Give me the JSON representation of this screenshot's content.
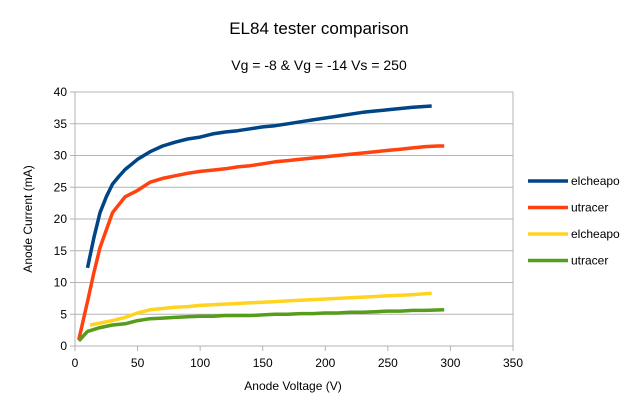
{
  "chart_data": {
    "type": "line",
    "title": "EL84 tester comparison",
    "subtitle": "Vg = -8 & Vg = -14 Vs = 250",
    "xlabel": "Anode Voltage (V)",
    "ylabel": "Anode Current (mA)",
    "xlim": [
      0,
      350
    ],
    "ylim": [
      0,
      40
    ],
    "xticks": [
      0,
      50,
      100,
      150,
      200,
      250,
      300,
      350
    ],
    "yticks": [
      0,
      5,
      10,
      15,
      20,
      25,
      30,
      35,
      40
    ],
    "grid": "horizontal",
    "legend": "right",
    "series": [
      {
        "name": "elcheapo",
        "color": "#004586",
        "points": [
          [
            10,
            12.3
          ],
          [
            15,
            17
          ],
          [
            20,
            21
          ],
          [
            25,
            23.5
          ],
          [
            30,
            25.5
          ],
          [
            35,
            26.7
          ],
          [
            40,
            27.8
          ],
          [
            50,
            29.4
          ],
          [
            60,
            30.6
          ],
          [
            70,
            31.5
          ],
          [
            80,
            32.1
          ],
          [
            90,
            32.6
          ],
          [
            100,
            32.9
          ],
          [
            110,
            33.4
          ],
          [
            120,
            33.7
          ],
          [
            130,
            33.9
          ],
          [
            140,
            34.2
          ],
          [
            150,
            34.5
          ],
          [
            160,
            34.7
          ],
          [
            170,
            35.0
          ],
          [
            180,
            35.3
          ],
          [
            190,
            35.6
          ],
          [
            200,
            35.9
          ],
          [
            210,
            36.2
          ],
          [
            220,
            36.5
          ],
          [
            230,
            36.8
          ],
          [
            240,
            37.0
          ],
          [
            250,
            37.2
          ],
          [
            260,
            37.4
          ],
          [
            270,
            37.6
          ],
          [
            285,
            37.8
          ]
        ]
      },
      {
        "name": "utracer",
        "color": "#ff420e",
        "points": [
          [
            3,
            1.0
          ],
          [
            10,
            7.0
          ],
          [
            15,
            11.5
          ],
          [
            20,
            15.5
          ],
          [
            30,
            21.0
          ],
          [
            40,
            23.5
          ],
          [
            50,
            24.5
          ],
          [
            60,
            25.8
          ],
          [
            70,
            26.4
          ],
          [
            80,
            26.8
          ],
          [
            90,
            27.2
          ],
          [
            100,
            27.5
          ],
          [
            110,
            27.7
          ],
          [
            120,
            27.9
          ],
          [
            130,
            28.2
          ],
          [
            140,
            28.4
          ],
          [
            150,
            28.7
          ],
          [
            160,
            29.0
          ],
          [
            170,
            29.2
          ],
          [
            180,
            29.4
          ],
          [
            190,
            29.6
          ],
          [
            200,
            29.8
          ],
          [
            210,
            30.0
          ],
          [
            220,
            30.2
          ],
          [
            230,
            30.4
          ],
          [
            240,
            30.6
          ],
          [
            250,
            30.8
          ],
          [
            260,
            31.0
          ],
          [
            270,
            31.2
          ],
          [
            280,
            31.4
          ],
          [
            290,
            31.5
          ],
          [
            295,
            31.5
          ]
        ]
      },
      {
        "name": "elcheapo",
        "color": "#ffd320",
        "points": [
          [
            12,
            3.3
          ],
          [
            20,
            3.6
          ],
          [
            30,
            4.0
          ],
          [
            40,
            4.5
          ],
          [
            50,
            5.2
          ],
          [
            60,
            5.7
          ],
          [
            70,
            5.9
          ],
          [
            80,
            6.1
          ],
          [
            90,
            6.2
          ],
          [
            100,
            6.4
          ],
          [
            110,
            6.5
          ],
          [
            120,
            6.6
          ],
          [
            130,
            6.7
          ],
          [
            140,
            6.8
          ],
          [
            150,
            6.9
          ],
          [
            160,
            7.0
          ],
          [
            170,
            7.1
          ],
          [
            180,
            7.2
          ],
          [
            190,
            7.3
          ],
          [
            200,
            7.4
          ],
          [
            210,
            7.5
          ],
          [
            220,
            7.6
          ],
          [
            230,
            7.7
          ],
          [
            240,
            7.8
          ],
          [
            250,
            7.9
          ],
          [
            260,
            8.0
          ],
          [
            270,
            8.1
          ],
          [
            285,
            8.3
          ]
        ]
      },
      {
        "name": "utracer",
        "color": "#579d1c",
        "points": [
          [
            3,
            0.8
          ],
          [
            10,
            2.3
          ],
          [
            20,
            2.9
          ],
          [
            30,
            3.3
          ],
          [
            40,
            3.5
          ],
          [
            50,
            4.0
          ],
          [
            60,
            4.3
          ],
          [
            70,
            4.4
          ],
          [
            80,
            4.5
          ],
          [
            90,
            4.6
          ],
          [
            100,
            4.7
          ],
          [
            110,
            4.7
          ],
          [
            120,
            4.8
          ],
          [
            130,
            4.8
          ],
          [
            140,
            4.8
          ],
          [
            150,
            4.9
          ],
          [
            160,
            5.0
          ],
          [
            170,
            5.0
          ],
          [
            180,
            5.1
          ],
          [
            190,
            5.1
          ],
          [
            200,
            5.2
          ],
          [
            210,
            5.2
          ],
          [
            220,
            5.3
          ],
          [
            230,
            5.3
          ],
          [
            240,
            5.4
          ],
          [
            250,
            5.5
          ],
          [
            260,
            5.5
          ],
          [
            270,
            5.6
          ],
          [
            280,
            5.6
          ],
          [
            295,
            5.7
          ]
        ]
      }
    ]
  }
}
